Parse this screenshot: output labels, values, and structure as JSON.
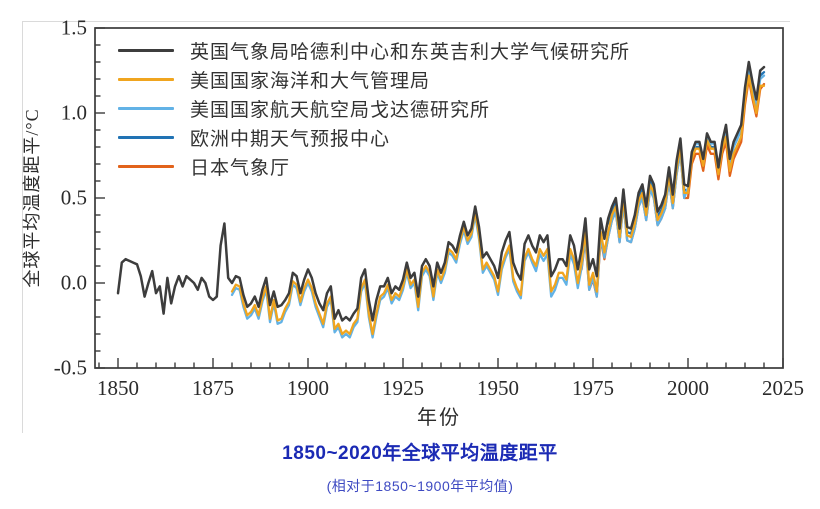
{
  "chart_data": {
    "type": "line",
    "title": "1850~2020年全球平均温度距平",
    "subtitle": "(相对于1850~1900年平均值)",
    "xlabel": "年份",
    "ylabel": "全球平均温度距平/°C",
    "xlim": [
      1844,
      2025
    ],
    "ylim": [
      -0.5,
      1.5
    ],
    "grid": false,
    "legend_position": "top-left-inside",
    "x_major_ticks": [
      1850,
      1875,
      1900,
      1925,
      1950,
      1975,
      2000,
      2025
    ],
    "x_tick_labels": [
      "1850",
      "1875",
      "1900",
      "1925",
      "1950",
      "1975",
      "2000",
      "2025"
    ],
    "x_minor_step": 5,
    "y_major_ticks": [
      -0.5,
      0.0,
      0.5,
      1.0,
      1.5
    ],
    "y_tick_labels": [
      "-0.5",
      "0.0",
      "0.5",
      "1.0",
      "1.5"
    ],
    "y_minor_step": 0.1,
    "axis_color": "#3a3a3a",
    "years_range": [
      1850,
      2020
    ],
    "series": [
      {
        "name": "英国气象局哈德利中心和东英吉利大学气候研究所",
        "color": "#3d3d3d",
        "start_year": 1850,
        "values": [
          -0.06,
          0.12,
          0.14,
          0.13,
          0.12,
          0.11,
          0.04,
          -0.08,
          0,
          0.07,
          -0.06,
          -0.02,
          -0.18,
          0.03,
          -0.12,
          -0.02,
          0.04,
          -0.02,
          0.04,
          0.02,
          0,
          -0.04,
          0.03,
          0,
          -0.08,
          -0.1,
          -0.08,
          0.22,
          0.35,
          0.03,
          0,
          0.04,
          0.03,
          -0.07,
          -0.14,
          -0.12,
          -0.08,
          -0.14,
          -0.04,
          0.03,
          -0.13,
          -0.05,
          -0.14,
          -0.13,
          -0.1,
          -0.06,
          0.06,
          0.04,
          -0.06,
          0.02,
          0.08,
          0.03,
          -0.06,
          -0.12,
          -0.16,
          -0.06,
          -0.02,
          -0.21,
          -0.16,
          -0.22,
          -0.2,
          -0.22,
          -0.18,
          -0.15,
          0.03,
          0.08,
          -0.1,
          -0.22,
          -0.1,
          -0.02,
          -0.02,
          0.03,
          -0.06,
          -0.02,
          -0.04,
          0.02,
          0.12,
          0.03,
          0.06,
          -0.08,
          0.1,
          0.14,
          0.1,
          -0.02,
          0.12,
          0.06,
          0.12,
          0.24,
          0.22,
          0.18,
          0.28,
          0.36,
          0.28,
          0.32,
          0.45,
          0.33,
          0.15,
          0.18,
          0.14,
          0.1,
          0.03,
          0.18,
          0.25,
          0.3,
          0.12,
          0.06,
          0.02,
          0.23,
          0.28,
          0.22,
          0.18,
          0.28,
          0.24,
          0.28,
          0.04,
          0.08,
          0.14,
          0.14,
          0.1,
          0.28,
          0.22,
          0.08,
          0.2,
          0.38,
          0.08,
          0.14,
          0.04,
          0.38,
          0.26,
          0.38,
          0.45,
          0.5,
          0.32,
          0.55,
          0.33,
          0.32,
          0.4,
          0.53,
          0.58,
          0.45,
          0.63,
          0.58,
          0.42,
          0.46,
          0.52,
          0.68,
          0.52,
          0.72,
          0.85,
          0.58,
          0.57,
          0.77,
          0.83,
          0.83,
          0.73,
          0.88,
          0.83,
          0.83,
          0.68,
          0.83,
          0.93,
          0.73,
          0.83,
          0.88,
          0.93,
          1.15,
          1.3,
          1.18,
          1.08,
          1.25,
          1.27
        ]
      },
      {
        "name": "美国国家海洋和大气管理局",
        "color": "#f0a51f",
        "start_year": 1880,
        "values": [
          -0.05,
          -0.01,
          -0.02,
          -0.12,
          -0.19,
          -0.17,
          -0.13,
          -0.19,
          -0.09,
          -0.02,
          -0.21,
          -0.1,
          -0.22,
          -0.21,
          -0.15,
          -0.11,
          0.01,
          -0.01,
          -0.11,
          -0.03,
          0.02,
          -0.03,
          -0.12,
          -0.18,
          -0.24,
          -0.12,
          -0.08,
          -0.27,
          -0.24,
          -0.3,
          -0.28,
          -0.3,
          -0.24,
          -0.21,
          -0.03,
          0.02,
          -0.18,
          -0.3,
          -0.18,
          -0.08,
          -0.06,
          -0.01,
          -0.1,
          -0.06,
          -0.08,
          -0.02,
          0.08,
          -0.01,
          0.02,
          -0.14,
          0.06,
          0.1,
          0.06,
          -0.08,
          0.08,
          0.02,
          0.08,
          0.2,
          0.18,
          0.14,
          0.25,
          0.33,
          0.25,
          0.29,
          0.42,
          0.28,
          0.08,
          0.12,
          0.08,
          0.04,
          -0.05,
          0.1,
          0.17,
          0.22,
          0.03,
          -0.03,
          -0.07,
          0.15,
          0.2,
          0.14,
          0.1,
          0.2,
          0.16,
          0.2,
          -0.05,
          -0.01,
          0.06,
          0.06,
          0.02,
          0.2,
          0.14,
          0,
          0.12,
          0.3,
          -0.01,
          0.06,
          -0.05,
          0.3,
          0.18,
          0.3,
          0.4,
          0.45,
          0.27,
          0.5,
          0.28,
          0.27,
          0.35,
          0.48,
          0.53,
          0.4,
          0.58,
          0.53,
          0.37,
          0.41,
          0.47,
          0.63,
          0.47,
          0.67,
          0.8,
          0.53,
          0.53,
          0.73,
          0.79,
          0.79,
          0.69,
          0.84,
          0.79,
          0.79,
          0.64,
          0.79,
          0.86,
          0.66,
          0.76,
          0.81,
          0.86,
          1.08,
          1.22,
          1.1,
          1.0,
          1.16,
          1.16
        ]
      },
      {
        "name": "美国国家航天航空局戈达德研究所",
        "color": "#62b2e6",
        "start_year": 1880,
        "values": [
          -0.07,
          -0.03,
          -0.04,
          -0.14,
          -0.21,
          -0.19,
          -0.15,
          -0.21,
          -0.11,
          -0.04,
          -0.23,
          -0.12,
          -0.24,
          -0.23,
          -0.17,
          -0.13,
          -0.01,
          -0.03,
          -0.13,
          -0.05,
          0,
          -0.05,
          -0.14,
          -0.2,
          -0.26,
          -0.14,
          -0.1,
          -0.29,
          -0.26,
          -0.32,
          -0.3,
          -0.32,
          -0.26,
          -0.23,
          -0.05,
          0,
          -0.2,
          -0.32,
          -0.2,
          -0.1,
          -0.08,
          -0.03,
          -0.12,
          -0.08,
          -0.1,
          -0.04,
          0.06,
          -0.03,
          0,
          -0.16,
          0.04,
          0.08,
          0.04,
          -0.1,
          0.06,
          0,
          0.06,
          0.18,
          0.16,
          0.12,
          0.23,
          0.31,
          0.23,
          0.27,
          0.4,
          0.26,
          0.06,
          0.1,
          0.06,
          0.02,
          -0.07,
          0.08,
          0.15,
          0.2,
          0.01,
          -0.05,
          -0.09,
          0.13,
          0.18,
          0.12,
          0.07,
          0.17,
          0.13,
          0.17,
          -0.08,
          -0.04,
          0.03,
          0.03,
          -0.01,
          0.17,
          0.11,
          -0.03,
          0.09,
          0.27,
          -0.04,
          0.03,
          -0.08,
          0.27,
          0.15,
          0.27,
          0.37,
          0.42,
          0.24,
          0.47,
          0.25,
          0.24,
          0.32,
          0.45,
          0.5,
          0.37,
          0.55,
          0.5,
          0.34,
          0.38,
          0.44,
          0.6,
          0.44,
          0.64,
          0.77,
          0.5,
          0.56,
          0.76,
          0.82,
          0.82,
          0.72,
          0.87,
          0.82,
          0.82,
          0.67,
          0.82,
          0.9,
          0.7,
          0.8,
          0.85,
          0.9,
          1.12,
          1.26,
          1.14,
          1.04,
          1.2,
          1.22
        ]
      },
      {
        "name": "欧洲中期天气预报中心",
        "color": "#2173b4",
        "start_year": 1979,
        "values": [
          0.35,
          0.42,
          0.47,
          0.29,
          0.52,
          0.3,
          0.29,
          0.37,
          0.5,
          0.55,
          0.42,
          0.6,
          0.55,
          0.39,
          0.43,
          0.49,
          0.65,
          0.49,
          0.69,
          0.82,
          0.55,
          0.54,
          0.74,
          0.8,
          0.8,
          0.7,
          0.85,
          0.8,
          0.8,
          0.65,
          0.8,
          0.9,
          0.7,
          0.8,
          0.85,
          0.9,
          1.12,
          1.28,
          1.15,
          1.05,
          1.22,
          1.24
        ]
      },
      {
        "name": "日本气象厅",
        "color": "#e2631b",
        "start_year": 1972,
        "values": [
          0.08,
          0.26,
          -0.04,
          0.02,
          -0.08,
          0.26,
          0.14,
          0.27,
          0.37,
          0.42,
          0.24,
          0.47,
          0.25,
          0.24,
          0.32,
          0.45,
          0.5,
          0.37,
          0.55,
          0.5,
          0.34,
          0.38,
          0.44,
          0.6,
          0.44,
          0.64,
          0.77,
          0.5,
          0.5,
          0.7,
          0.76,
          0.76,
          0.66,
          0.81,
          0.76,
          0.76,
          0.61,
          0.76,
          0.83,
          0.63,
          0.73,
          0.78,
          0.83,
          1.05,
          1.2,
          1.08,
          0.98,
          1.14,
          1.17
        ]
      }
    ],
    "draw_order": [
      3,
      4,
      2,
      1,
      0
    ]
  },
  "colors": {
    "title_blue": "#1b2ab4",
    "subtitle_blue": "#3e4ac2",
    "axis": "#3a3a3a",
    "tick_text": "#2b2b2b"
  }
}
